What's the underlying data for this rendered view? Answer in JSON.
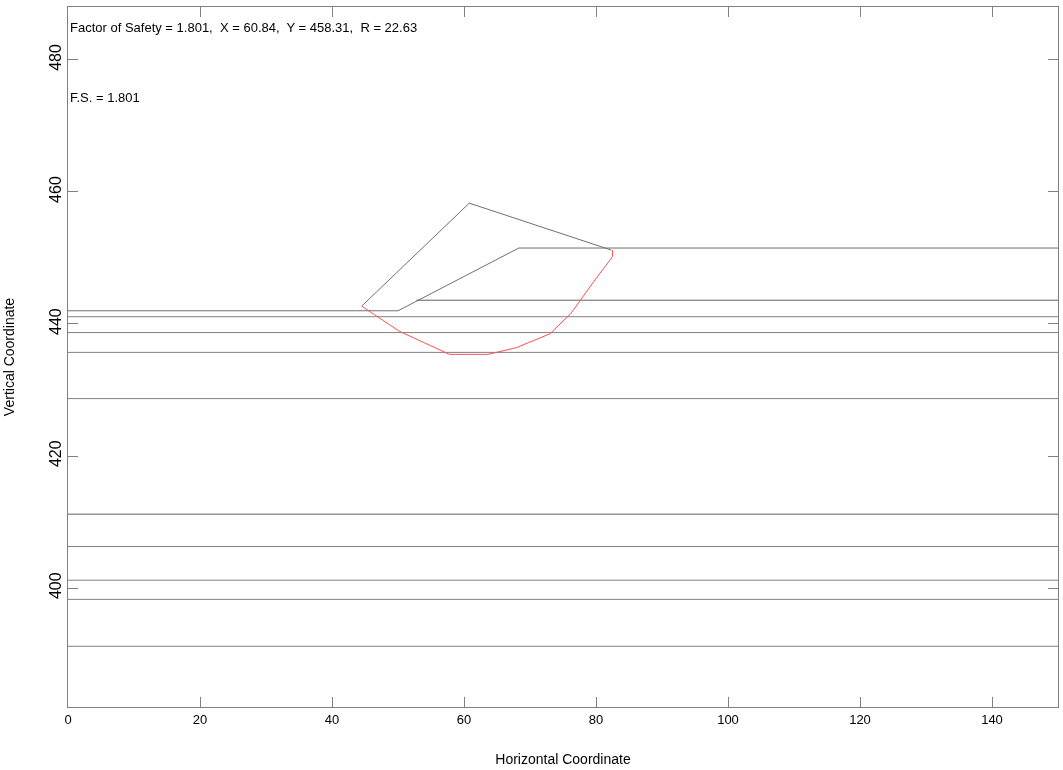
{
  "chart_data": {
    "type": "line",
    "xlabel": "Horizontal Coordinate",
    "ylabel": "Vertical Coordinate",
    "annotations": [
      "Factor of Safety = 1.801,  X = 60.84,  Y = 458.31,  R = 22.63",
      "F.S. = 1.801"
    ],
    "xlim": [
      0,
      150
    ],
    "xticks": [
      0,
      20,
      40,
      60,
      80,
      100,
      120,
      140
    ],
    "ylim": [
      382,
      488
    ],
    "yticks": [
      400,
      420,
      440,
      460,
      480
    ],
    "marker": "none",
    "line_style": "solid",
    "series": [
      {
        "color": "#707070",
        "x": [
          0,
          50.0,
          68.3,
          150
        ],
        "values": [
          442.0,
          442.0,
          451.5,
          451.5
        ]
      },
      {
        "color": "#606060",
        "x": [
          52.8,
          150
        ],
        "values": [
          443.6,
          443.6
        ]
      },
      {
        "color": "#808080",
        "x": [
          0,
          150
        ],
        "values": [
          441.1,
          441.1
        ]
      },
      {
        "color": "#808080",
        "x": [
          0,
          150
        ],
        "values": [
          438.7,
          438.7
        ]
      },
      {
        "color": "#808080",
        "x": [
          0,
          150
        ],
        "values": [
          435.7,
          435.7
        ]
      },
      {
        "color": "#808080",
        "x": [
          0,
          150
        ],
        "values": [
          428.7,
          428.7
        ]
      },
      {
        "color": "#606060",
        "x": [
          0,
          150
        ],
        "values": [
          411.2,
          411.2
        ]
      },
      {
        "color": "#808080",
        "x": [
          0,
          150
        ],
        "values": [
          406.3,
          406.3
        ]
      },
      {
        "color": "#808080",
        "x": [
          0,
          150
        ],
        "values": [
          401.2,
          401.2
        ]
      },
      {
        "color": "#808080",
        "x": [
          0,
          150
        ],
        "values": [
          398.3,
          398.3
        ]
      },
      {
        "color": "#808080",
        "x": [
          0,
          150
        ],
        "values": [
          391.2,
          391.2
        ]
      },
      {
        "color": "#707070",
        "x": [
          44.5,
          60.8,
          82.3
        ],
        "values": [
          442.7,
          458.3,
          451.2
        ]
      },
      {
        "color": "#ff5050",
        "x": [
          44.5,
          50.2,
          57.8,
          63.6,
          67.9,
          73.0,
          76.2,
          79.5,
          82.5,
          82.5
        ],
        "values": [
          442.7,
          438.9,
          435.4,
          435.4,
          436.4,
          438.5,
          441.6,
          446.2,
          450.2,
          451.2
        ]
      }
    ]
  }
}
